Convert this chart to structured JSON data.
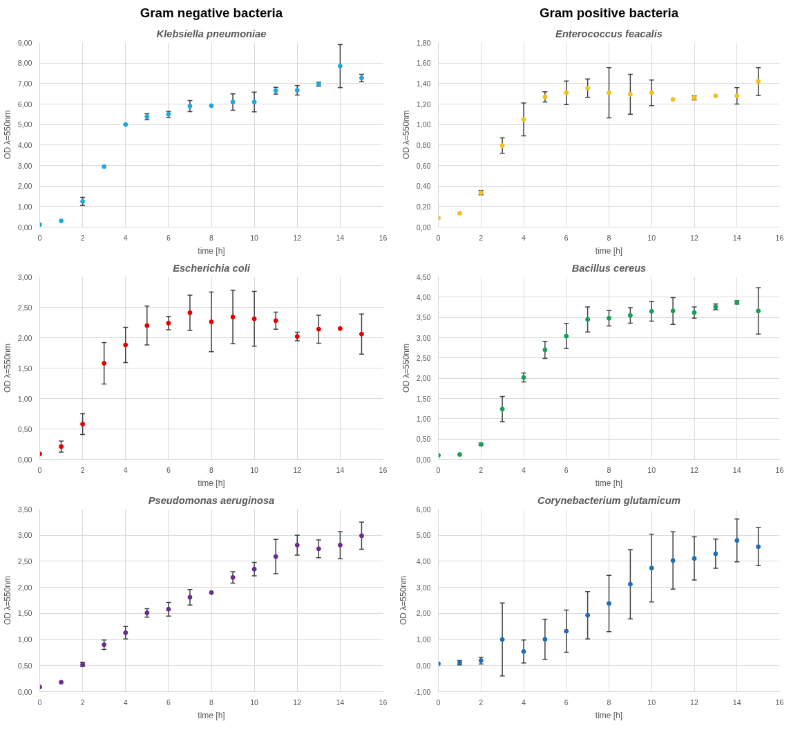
{
  "chart_data": [
    {
      "type": "scatter",
      "annotations": [
        "Gram negative bacteria"
      ],
      "title": "Klebsiella pneumoniae",
      "xlabel": "time [h]",
      "ylabel": "OD λ=550nm",
      "marker": "circle",
      "grid": true,
      "x": [
        0,
        1,
        2,
        3,
        4,
        5,
        6,
        7,
        8,
        9,
        10,
        11,
        12,
        13,
        14,
        15
      ],
      "xlim": [
        0,
        16
      ],
      "xticks": [
        0,
        2,
        4,
        6,
        8,
        10,
        12,
        14,
        16
      ],
      "ylim": [
        0,
        9
      ],
      "yticks": [
        {
          "value": 0,
          "label": "0,00"
        },
        {
          "value": 1,
          "label": "1,00"
        },
        {
          "value": 2,
          "label": "2,00"
        },
        {
          "value": 3,
          "label": "3,00"
        },
        {
          "value": 4,
          "label": "4,00"
        },
        {
          "value": 5,
          "label": "5,00"
        },
        {
          "value": 6,
          "label": "6,00"
        },
        {
          "value": 7,
          "label": "7,00"
        },
        {
          "value": 8,
          "label": "8,00"
        },
        {
          "value": 9,
          "label": "9,00"
        }
      ],
      "series": [
        {
          "color": "#1fa7e0",
          "values": [
            0.12,
            0.3,
            1.25,
            2.95,
            5.0,
            5.38,
            5.5,
            5.9,
            5.92,
            6.1,
            6.1,
            6.65,
            6.67,
            6.97,
            7.85,
            7.27
          ],
          "errors": [
            null,
            null,
            0.2,
            null,
            null,
            0.15,
            0.15,
            0.27,
            null,
            0.4,
            0.48,
            0.17,
            0.23,
            0.1,
            1.05,
            0.18
          ]
        }
      ]
    },
    {
      "type": "scatter",
      "annotations": [
        "Gram positive bacteria"
      ],
      "title": "Enterococcus feacalis",
      "xlabel": "time [h]",
      "ylabel": "OD λ=550nm",
      "marker": "circle",
      "grid": true,
      "x": [
        0,
        1,
        2,
        3,
        4,
        5,
        6,
        7,
        8,
        9,
        10,
        11,
        12,
        13,
        14,
        15
      ],
      "xlim": [
        0,
        16
      ],
      "xticks": [
        0,
        2,
        4,
        6,
        8,
        10,
        12,
        14,
        16
      ],
      "ylim": [
        0,
        1.8
      ],
      "yticks": [
        {
          "value": 0,
          "label": "0,00"
        },
        {
          "value": 0.2,
          "label": "0,20"
        },
        {
          "value": 0.4,
          "label": "0,40"
        },
        {
          "value": 0.6,
          "label": "0,60"
        },
        {
          "value": 0.8,
          "label": "0,80"
        },
        {
          "value": 1.0,
          "label": "1,00"
        },
        {
          "value": 1.2,
          "label": "1,20"
        },
        {
          "value": 1.4,
          "label": "1,40"
        },
        {
          "value": 1.6,
          "label": "1,60"
        },
        {
          "value": 1.8,
          "label": "1,80"
        }
      ],
      "series": [
        {
          "color": "#f5c01a",
          "values": [
            0.09,
            0.135,
            0.335,
            0.795,
            1.05,
            1.27,
            1.31,
            1.355,
            1.31,
            1.295,
            1.31,
            1.245,
            1.26,
            1.28,
            1.28,
            1.42
          ],
          "errors": [
            null,
            null,
            0.02,
            0.075,
            0.16,
            0.05,
            0.115,
            0.09,
            0.245,
            0.195,
            0.125,
            null,
            0.02,
            null,
            0.08,
            0.135
          ]
        }
      ]
    },
    {
      "type": "scatter",
      "title": "Escherichia coli",
      "xlabel": "time [h]",
      "ylabel": "OD λ=550nm",
      "marker": "circle",
      "grid": true,
      "x": [
        0,
        1,
        2,
        3,
        4,
        5,
        6,
        7,
        8,
        9,
        10,
        11,
        12,
        13,
        14,
        15
      ],
      "xlim": [
        0,
        16
      ],
      "xticks": [
        0,
        2,
        4,
        6,
        8,
        10,
        12,
        14,
        16
      ],
      "ylim": [
        0,
        3
      ],
      "yticks": [
        {
          "value": 0,
          "label": "0,00"
        },
        {
          "value": 0.5,
          "label": "0,50"
        },
        {
          "value": 1.0,
          "label": "1,00"
        },
        {
          "value": 1.5,
          "label": "1,50"
        },
        {
          "value": 2.0,
          "label": "2,00"
        },
        {
          "value": 2.5,
          "label": "2,50"
        },
        {
          "value": 3.0,
          "label": "3,00"
        }
      ],
      "series": [
        {
          "color": "#e60000",
          "values": [
            0.09,
            0.21,
            0.58,
            1.58,
            1.88,
            2.2,
            2.24,
            2.41,
            2.26,
            2.34,
            2.31,
            2.28,
            2.02,
            2.14,
            2.15,
            2.06
          ],
          "errors": [
            null,
            0.09,
            0.17,
            0.34,
            0.29,
            0.32,
            0.11,
            0.29,
            0.49,
            0.44,
            0.45,
            0.14,
            0.07,
            0.23,
            null,
            0.33
          ]
        }
      ]
    },
    {
      "type": "scatter",
      "title": "Bacillus cereus",
      "xlabel": "time [h]",
      "ylabel": "OD λ=550nm",
      "marker": "circle",
      "grid": true,
      "x": [
        0,
        1,
        2,
        3,
        4,
        5,
        6,
        7,
        8,
        9,
        10,
        11,
        12,
        13,
        14,
        15
      ],
      "xlim": [
        0,
        16
      ],
      "xticks": [
        0,
        2,
        4,
        6,
        8,
        10,
        12,
        14,
        16
      ],
      "ylim": [
        0,
        4.5
      ],
      "yticks": [
        {
          "value": 0,
          "label": "0,00"
        },
        {
          "value": 0.5,
          "label": "0,50"
        },
        {
          "value": 1.0,
          "label": "1,00"
        },
        {
          "value": 1.5,
          "label": "1,50"
        },
        {
          "value": 2.0,
          "label": "2,00"
        },
        {
          "value": 2.5,
          "label": "2,50"
        },
        {
          "value": 3.0,
          "label": "3,00"
        },
        {
          "value": 3.5,
          "label": "3,50"
        },
        {
          "value": 4.0,
          "label": "4,00"
        },
        {
          "value": 4.5,
          "label": "4,50"
        }
      ],
      "series": [
        {
          "color": "#17a05a",
          "values": [
            0.1,
            0.12,
            0.37,
            1.24,
            2.02,
            2.7,
            3.04,
            3.45,
            3.48,
            3.55,
            3.65,
            3.66,
            3.62,
            3.76,
            3.87,
            3.66
          ],
          "errors": [
            null,
            null,
            0.03,
            0.31,
            0.11,
            0.21,
            0.31,
            0.31,
            0.19,
            0.19,
            0.24,
            0.33,
            0.14,
            0.07,
            0.04,
            0.57
          ]
        }
      ]
    },
    {
      "type": "scatter",
      "title": "Pseudomonas aeruginosa",
      "xlabel": "time [h]",
      "ylabel": "OD λ=550nm",
      "marker": "circle",
      "grid": true,
      "x": [
        0,
        1,
        2,
        3,
        4,
        5,
        6,
        7,
        8,
        9,
        10,
        11,
        12,
        13,
        14,
        15
      ],
      "xlim": [
        0,
        16
      ],
      "xticks": [
        0,
        2,
        4,
        6,
        8,
        10,
        12,
        14,
        16
      ],
      "ylim": [
        0,
        3.5
      ],
      "yticks": [
        {
          "value": 0,
          "label": "0,00"
        },
        {
          "value": 0.5,
          "label": "0,50"
        },
        {
          "value": 1.0,
          "label": "1,00"
        },
        {
          "value": 1.5,
          "label": "1,50"
        },
        {
          "value": 2.0,
          "label": "2,00"
        },
        {
          "value": 2.5,
          "label": "2,50"
        },
        {
          "value": 3.0,
          "label": "3,00"
        },
        {
          "value": 3.5,
          "label": "3,50"
        }
      ],
      "series": [
        {
          "color": "#6a2c91",
          "values": [
            0.09,
            0.18,
            0.52,
            0.9,
            1.13,
            1.51,
            1.58,
            1.81,
            1.9,
            2.19,
            2.35,
            2.59,
            2.81,
            2.74,
            2.81,
            2.99
          ],
          "errors": [
            null,
            null,
            0.04,
            0.09,
            0.12,
            0.08,
            0.13,
            0.15,
            null,
            0.11,
            0.13,
            0.33,
            0.19,
            0.17,
            0.26,
            0.26
          ]
        }
      ]
    },
    {
      "type": "scatter",
      "title": "Corynebacterium glutamicum",
      "xlabel": "time [h]",
      "ylabel": "OD λ=550nm",
      "marker": "circle",
      "grid": true,
      "x": [
        0,
        1,
        2,
        3,
        4,
        5,
        6,
        7,
        8,
        9,
        10,
        11,
        12,
        13,
        14,
        15
      ],
      "xlim": [
        0,
        16
      ],
      "xticks": [
        0,
        2,
        4,
        6,
        8,
        10,
        12,
        14,
        16
      ],
      "ylim": [
        -1,
        6
      ],
      "yticks": [
        {
          "value": -1,
          "label": "-1,00"
        },
        {
          "value": 0,
          "label": "0,00"
        },
        {
          "value": 1,
          "label": "1,00"
        },
        {
          "value": 2,
          "label": "2,00"
        },
        {
          "value": 3,
          "label": "3,00"
        },
        {
          "value": 4,
          "label": "4,00"
        },
        {
          "value": 5,
          "label": "5,00"
        },
        {
          "value": 6,
          "label": "6,00"
        }
      ],
      "series": [
        {
          "color": "#1f6fb4",
          "values": [
            0.07,
            0.11,
            0.19,
            1.0,
            0.54,
            1.01,
            1.32,
            1.93,
            2.38,
            3.12,
            3.74,
            4.03,
            4.11,
            4.29,
            4.8,
            4.56
          ],
          "errors": [
            null,
            0.08,
            0.13,
            1.4,
            0.44,
            0.77,
            0.81,
            0.91,
            1.08,
            1.33,
            1.3,
            1.1,
            0.83,
            0.56,
            0.82,
            0.73
          ]
        }
      ]
    }
  ]
}
